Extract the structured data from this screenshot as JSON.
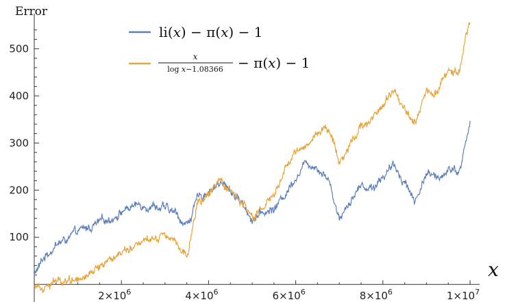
{
  "chart_data": {
    "type": "line",
    "ylabel": "Error",
    "xlabel": "x",
    "xlim": [
      0,
      10000000
    ],
    "ylim": [
      -20,
      560
    ],
    "x_ticks": [
      {
        "value": 2000000,
        "label": "2×10^6"
      },
      {
        "value": 4000000,
        "label": "4×10^6"
      },
      {
        "value": 6000000,
        "label": "6×10^6"
      },
      {
        "value": 8000000,
        "label": "8×10^6"
      },
      {
        "value": 10000000,
        "label": "1×10^7"
      }
    ],
    "y_ticks": [
      100,
      200,
      300,
      400,
      500
    ],
    "legend_position": "top-center",
    "series": [
      {
        "name": "li(x) − π(x) − 1",
        "color": "#5b7fba",
        "x": [
          0,
          250000,
          500000,
          750000,
          1000000,
          1250000,
          1500000,
          1750000,
          2000000,
          2250000,
          2500000,
          2750000,
          3000000,
          3250000,
          3500000,
          3750000,
          4000000,
          4250000,
          4500000,
          4750000,
          5000000,
          5250000,
          5500000,
          5750000,
          6000000,
          6250000,
          6500000,
          6750000,
          7000000,
          7250000,
          7500000,
          7750000,
          8000000,
          8250000,
          8500000,
          8750000,
          9000000,
          9250000,
          9500000,
          9750000,
          10000000
        ],
        "values": [
          20,
          60,
          85,
          95,
          110,
          120,
          130,
          140,
          155,
          165,
          170,
          168,
          160,
          150,
          125,
          180,
          200,
          215,
          200,
          175,
          140,
          150,
          160,
          190,
          230,
          260,
          250,
          225,
          140,
          180,
          210,
          205,
          230,
          250,
          220,
          175,
          240,
          220,
          250,
          240,
          340
        ]
      },
      {
        "name": "x/(log x − 1.08366) − π(x) − 1",
        "color": "#e8a33a",
        "x": [
          0,
          250000,
          500000,
          750000,
          1000000,
          1250000,
          1500000,
          1750000,
          2000000,
          2250000,
          2500000,
          2750000,
          3000000,
          3250000,
          3500000,
          3750000,
          4000000,
          4250000,
          4500000,
          4750000,
          5000000,
          5250000,
          5500000,
          5750000,
          6000000,
          6250000,
          6500000,
          6750000,
          7000000,
          7250000,
          7500000,
          7750000,
          8000000,
          8250000,
          8500000,
          8750000,
          9000000,
          9250000,
          9500000,
          9750000,
          10000000
        ],
        "values": [
          0,
          0,
          5,
          10,
          15,
          25,
          40,
          55,
          70,
          85,
          95,
          100,
          110,
          95,
          60,
          170,
          190,
          210,
          200,
          175,
          140,
          160,
          190,
          240,
          280,
          300,
          320,
          335,
          260,
          300,
          340,
          350,
          380,
          410,
          380,
          340,
          420,
          410,
          450,
          460,
          560
        ]
      }
    ]
  }
}
